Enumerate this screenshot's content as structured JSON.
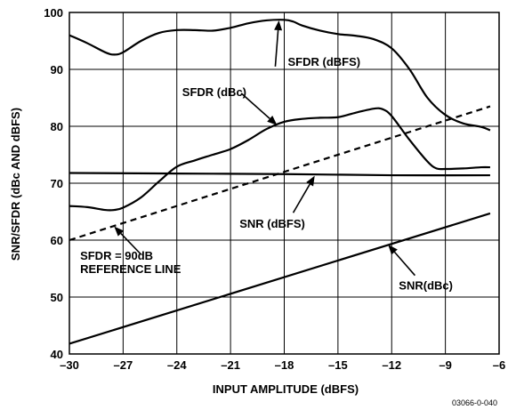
{
  "chart_data": {
    "type": "line",
    "xlabel": "INPUT AMPLITUDE (dBFS)",
    "ylabel": "SNR/SFDR (dBc AND dBFS)",
    "xlim": [
      -30,
      -6
    ],
    "ylim": [
      40,
      100
    ],
    "x_ticks": [
      -30,
      -27,
      -24,
      -21,
      -18,
      -15,
      -12,
      -9,
      -6
    ],
    "y_ticks": [
      40,
      50,
      60,
      70,
      80,
      90,
      100
    ],
    "x_tick_labels": [
      "–30",
      "–27",
      "–24",
      "–21",
      "–18",
      "–15",
      "–12",
      "–9",
      "–6"
    ],
    "y_tick_labels": [
      "40",
      "50",
      "60",
      "70",
      "80",
      "90",
      "100"
    ],
    "grid": true,
    "series": [
      {
        "name": "SFDR (dBFS)",
        "style": "solid",
        "points": [
          [
            -30,
            96
          ],
          [
            -29,
            94.6
          ],
          [
            -28,
            93
          ],
          [
            -27.5,
            92.6
          ],
          [
            -27,
            93
          ],
          [
            -26,
            95
          ],
          [
            -25,
            96.4
          ],
          [
            -24,
            96.9
          ],
          [
            -23,
            96.9
          ],
          [
            -22,
            96.8
          ],
          [
            -21,
            97.3
          ],
          [
            -20,
            98.1
          ],
          [
            -19,
            98.6
          ],
          [
            -18,
            98.7
          ],
          [
            -17.5,
            98.4
          ],
          [
            -17,
            97.7
          ],
          [
            -16,
            96.8
          ],
          [
            -15,
            96.2
          ],
          [
            -14,
            95.9
          ],
          [
            -13,
            95.3
          ],
          [
            -12,
            93.7
          ],
          [
            -11,
            90
          ],
          [
            -10,
            85
          ],
          [
            -9,
            82
          ],
          [
            -8,
            80.5
          ],
          [
            -7,
            79.9
          ],
          [
            -6.5,
            79.3
          ]
        ]
      },
      {
        "name": "SFDR (dBc)",
        "style": "solid",
        "points": [
          [
            -30,
            66
          ],
          [
            -29,
            65.8
          ],
          [
            -28,
            65.3
          ],
          [
            -27.5,
            65.3
          ],
          [
            -27,
            65.7
          ],
          [
            -26,
            67.5
          ],
          [
            -25,
            70.3
          ],
          [
            -24,
            72.9
          ],
          [
            -23,
            74
          ],
          [
            -22,
            75
          ],
          [
            -21,
            76
          ],
          [
            -20,
            77.6
          ],
          [
            -19,
            79.5
          ],
          [
            -18,
            80.8
          ],
          [
            -17,
            81.3
          ],
          [
            -16,
            81.5
          ],
          [
            -15,
            81.6
          ],
          [
            -14,
            82.4
          ],
          [
            -13,
            83.1
          ],
          [
            -12.5,
            83
          ],
          [
            -12,
            81.8
          ],
          [
            -11,
            77.6
          ],
          [
            -10,
            73.8
          ],
          [
            -9.5,
            72.6
          ],
          [
            -9,
            72.5
          ],
          [
            -8,
            72.6
          ],
          [
            -7,
            72.8
          ],
          [
            -6.5,
            72.8
          ]
        ]
      },
      {
        "name": "SNR (dBFS)",
        "style": "solid",
        "points": [
          [
            -30,
            71.8
          ],
          [
            -24,
            71.7
          ],
          [
            -18,
            71.6
          ],
          [
            -12,
            71.4
          ],
          [
            -6.5,
            71.4
          ]
        ]
      },
      {
        "name": "SFDR = 90dB REFERENCE LINE",
        "style": "dashed",
        "points": [
          [
            -30,
            60
          ],
          [
            -6.5,
            83.5
          ]
        ]
      },
      {
        "name": "SNR(dBc)",
        "style": "solid",
        "points": [
          [
            -30,
            41.8
          ],
          [
            -6.5,
            64.7
          ]
        ]
      }
    ],
    "annotations": [
      {
        "text": "SFDR (dBFS)",
        "lines": [
          "SFDR (dBFS)"
        ],
        "series": 0,
        "target": [
          -18.3,
          98.6
        ],
        "anchor": [
          -18.5,
          90.5
        ],
        "text_at": [
          -17.8,
          90.6
        ],
        "align": "left"
      },
      {
        "text": "SFDR (dBc)",
        "lines": [
          "SFDR (dBc)"
        ],
        "series": 1,
        "target": [
          -18.4,
          80.2
        ],
        "anchor": [
          -20.4,
          85.8
        ],
        "text_at": [
          -23.7,
          85.3
        ],
        "align": "left"
      },
      {
        "text": "SNR (dBFS)",
        "lines": [
          "SNR (dBFS)"
        ],
        "series": 2,
        "target": [
          -16.3,
          71.3
        ],
        "anchor": [
          -17.5,
          64.8
        ],
        "text_at": [
          -20.5,
          62.2
        ],
        "align": "left"
      },
      {
        "text": "SFDR = 90dB REFERENCE LINE",
        "lines": [
          "SFDR = 90dB",
          "REFERENCE LINE"
        ],
        "series": 3,
        "target": [
          -27.5,
          62.4
        ],
        "anchor": [
          -26,
          57.5
        ],
        "text_at": [
          -29.4,
          56.6
        ],
        "align": "left"
      },
      {
        "text": "SNR(dBc)",
        "lines": [
          "SNR(dBc)"
        ],
        "series": 4,
        "target": [
          -12.2,
          59.2
        ],
        "anchor": [
          -10.7,
          53.8
        ],
        "text_at": [
          -11.6,
          51.3
        ],
        "align": "left"
      }
    ],
    "figure_id": "03066-0-040"
  }
}
